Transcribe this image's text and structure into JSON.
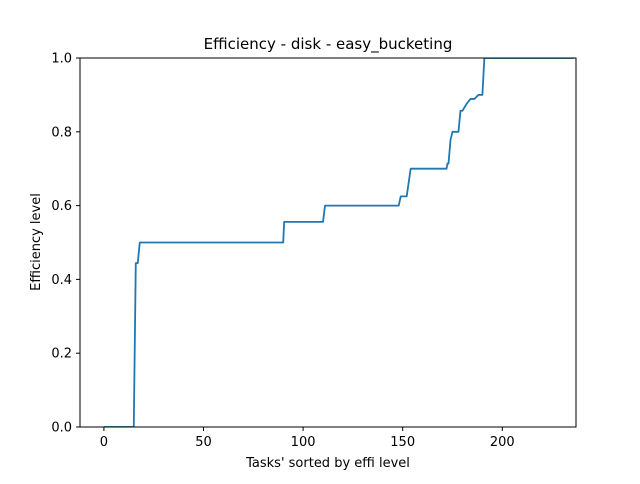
{
  "chart_data": {
    "type": "line",
    "title": "Efficiency - disk - easy_bucketing",
    "xlabel": "Tasks' sorted by effi level",
    "ylabel": "Efficiency level",
    "xlim": [
      -12,
      237
    ],
    "ylim": [
      0.0,
      1.0
    ],
    "xticks": [
      0,
      50,
      100,
      150,
      200
    ],
    "xtick_labels": [
      "0",
      "50",
      "100",
      "150",
      "200"
    ],
    "yticks": [
      0.0,
      0.2,
      0.4,
      0.6,
      0.8,
      1.0
    ],
    "ytick_labels": [
      "0.0",
      "0.2",
      "0.4",
      "0.6",
      "0.8",
      "1.0"
    ],
    "grid": false,
    "legend": "none",
    "series": [
      {
        "color": "#1f77b4",
        "x": [
          0,
          15,
          16,
          16.5,
          17,
          18,
          90,
          90.5,
          110,
          111,
          148,
          149,
          152,
          154,
          172,
          172.5,
          173,
          174,
          175,
          178,
          179,
          180,
          182,
          184,
          185,
          186,
          188,
          190,
          191,
          236
        ],
        "y": [
          0.0,
          0.0,
          0.444,
          0.444,
          0.444,
          0.5,
          0.5,
          0.556,
          0.556,
          0.6,
          0.6,
          0.625,
          0.625,
          0.7,
          0.7,
          0.714,
          0.714,
          0.778,
          0.8,
          0.8,
          0.857,
          0.857,
          0.875,
          0.889,
          0.889,
          0.889,
          0.9,
          0.9,
          1.0,
          1.0
        ]
      }
    ]
  }
}
